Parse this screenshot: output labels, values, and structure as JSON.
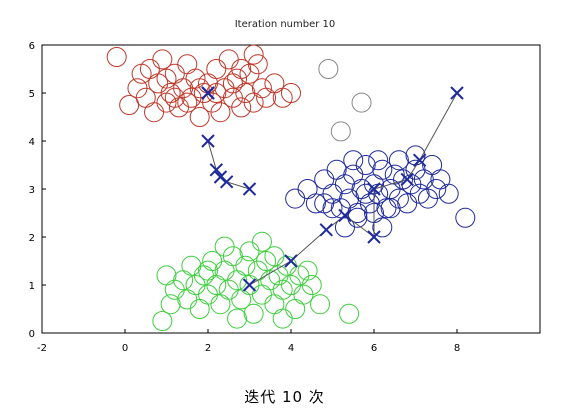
{
  "caption": "迭代 10 次",
  "chart_data": {
    "type": "scatter",
    "title": "Iteration number 10",
    "xlabel": "",
    "ylabel": "",
    "xlim": [
      -2,
      10
    ],
    "ylim": [
      0,
      6
    ],
    "xticks": [
      -2,
      0,
      2,
      4,
      6,
      8
    ],
    "yticks": [
      0,
      1,
      2,
      3,
      4,
      5,
      6
    ],
    "grid": false,
    "colors": {
      "red": "#c0392b",
      "blue": "#1f2a9c",
      "green": "#3ecf3e",
      "gray": "#888888"
    },
    "series": [
      {
        "color": "red",
        "marker": "open-circle",
        "points": [
          [
            -0.2,
            5.75
          ],
          [
            0.1,
            4.75
          ],
          [
            0.3,
            5.1
          ],
          [
            0.5,
            4.9
          ],
          [
            0.6,
            5.5
          ],
          [
            0.7,
            4.6
          ],
          [
            0.8,
            5.2
          ],
          [
            0.9,
            5.7
          ],
          [
            1.0,
            4.8
          ],
          [
            1.1,
            5.0
          ],
          [
            1.2,
            5.4
          ],
          [
            1.3,
            4.7
          ],
          [
            1.4,
            5.1
          ],
          [
            1.5,
            5.6
          ],
          [
            1.6,
            4.9
          ],
          [
            1.7,
            5.3
          ],
          [
            1.8,
            4.5
          ],
          [
            1.9,
            5.0
          ],
          [
            2.0,
            5.2
          ],
          [
            2.1,
            4.8
          ],
          [
            2.2,
            5.5
          ],
          [
            2.3,
            4.6
          ],
          [
            2.4,
            5.1
          ],
          [
            2.5,
            5.7
          ],
          [
            2.6,
            4.9
          ],
          [
            2.7,
            5.3
          ],
          [
            2.8,
            4.7
          ],
          [
            2.9,
            5.0
          ],
          [
            3.0,
            5.4
          ],
          [
            3.1,
            4.8
          ],
          [
            3.2,
            5.6
          ],
          [
            3.3,
            5.1
          ],
          [
            3.4,
            4.9
          ],
          [
            3.6,
            5.2
          ],
          [
            3.8,
            4.9
          ],
          [
            4.0,
            5.0
          ],
          [
            1.2,
            4.9
          ],
          [
            1.8,
            5.1
          ],
          [
            2.2,
            5.0
          ],
          [
            2.6,
            5.2
          ],
          [
            1.0,
            5.3
          ],
          [
            1.5,
            4.8
          ],
          [
            2.8,
            5.5
          ],
          [
            3.1,
            5.8
          ],
          [
            0.4,
            5.4
          ]
        ]
      },
      {
        "color": "blue",
        "marker": "open-circle",
        "points": [
          [
            4.1,
            2.8
          ],
          [
            4.4,
            3.0
          ],
          [
            4.6,
            2.7
          ],
          [
            4.8,
            3.2
          ],
          [
            5.0,
            2.9
          ],
          [
            5.1,
            3.4
          ],
          [
            5.2,
            2.6
          ],
          [
            5.3,
            3.1
          ],
          [
            5.4,
            2.8
          ],
          [
            5.5,
            3.3
          ],
          [
            5.6,
            2.5
          ],
          [
            5.7,
            3.0
          ],
          [
            5.8,
            3.5
          ],
          [
            5.9,
            2.7
          ],
          [
            6.0,
            3.1
          ],
          [
            6.1,
            2.9
          ],
          [
            6.2,
            3.4
          ],
          [
            6.3,
            2.6
          ],
          [
            6.4,
            3.0
          ],
          [
            6.5,
            3.3
          ],
          [
            6.6,
            2.8
          ],
          [
            6.7,
            3.2
          ],
          [
            6.8,
            2.7
          ],
          [
            6.9,
            3.1
          ],
          [
            7.0,
            3.4
          ],
          [
            7.1,
            2.9
          ],
          [
            7.2,
            3.2
          ],
          [
            7.3,
            2.8
          ],
          [
            7.4,
            3.5
          ],
          [
            7.5,
            3.0
          ],
          [
            7.6,
            3.2
          ],
          [
            7.8,
            2.9
          ],
          [
            5.6,
            2.4
          ],
          [
            6.0,
            2.5
          ],
          [
            6.4,
            2.6
          ],
          [
            5.0,
            2.6
          ],
          [
            5.3,
            2.2
          ],
          [
            4.8,
            2.7
          ],
          [
            5.5,
            3.6
          ],
          [
            6.1,
            3.6
          ],
          [
            6.6,
            3.6
          ],
          [
            7.0,
            3.7
          ],
          [
            8.2,
            2.4
          ],
          [
            6.2,
            2.2
          ],
          [
            5.8,
            2.9
          ]
        ]
      },
      {
        "color": "green",
        "marker": "open-circle",
        "points": [
          [
            0.9,
            0.25
          ],
          [
            1.0,
            1.2
          ],
          [
            1.2,
            0.9
          ],
          [
            1.4,
            1.1
          ],
          [
            1.5,
            0.7
          ],
          [
            1.6,
            1.4
          ],
          [
            1.7,
            1.0
          ],
          [
            1.8,
            0.5
          ],
          [
            1.9,
            1.2
          ],
          [
            2.0,
            0.8
          ],
          [
            2.1,
            1.5
          ],
          [
            2.2,
            1.0
          ],
          [
            2.3,
            0.6
          ],
          [
            2.4,
            1.3
          ],
          [
            2.5,
            0.9
          ],
          [
            2.6,
            1.6
          ],
          [
            2.7,
            1.1
          ],
          [
            2.8,
            0.7
          ],
          [
            2.9,
            1.4
          ],
          [
            3.0,
            1.0
          ],
          [
            3.1,
            0.4
          ],
          [
            3.2,
            1.3
          ],
          [
            3.3,
            0.8
          ],
          [
            3.4,
            1.5
          ],
          [
            3.5,
            1.1
          ],
          [
            3.6,
            0.6
          ],
          [
            3.7,
            1.2
          ],
          [
            3.8,
            0.9
          ],
          [
            3.9,
            1.4
          ],
          [
            4.0,
            1.0
          ],
          [
            4.1,
            0.5
          ],
          [
            4.2,
            1.2
          ],
          [
            4.3,
            0.8
          ],
          [
            4.5,
            1.0
          ],
          [
            4.7,
            0.6
          ],
          [
            5.4,
            0.4
          ],
          [
            3.0,
            1.7
          ],
          [
            2.4,
            1.8
          ],
          [
            3.3,
            1.9
          ],
          [
            2.0,
            1.3
          ],
          [
            3.6,
            1.6
          ],
          [
            4.4,
            1.3
          ],
          [
            1.1,
            0.6
          ],
          [
            2.7,
            0.3
          ],
          [
            3.8,
            0.3
          ]
        ]
      },
      {
        "color": "gray",
        "marker": "open-circle",
        "points": [
          [
            4.9,
            5.5
          ],
          [
            5.7,
            4.8
          ],
          [
            5.2,
            4.2
          ]
        ]
      }
    ],
    "centroid_paths": [
      {
        "color": "blue",
        "points": [
          [
            2.0,
            5.0
          ],
          [
            2.0,
            5.0
          ]
        ]
      },
      {
        "color": "blue",
        "points": [
          [
            2.0,
            4.0
          ],
          [
            2.2,
            3.4
          ],
          [
            2.3,
            3.25
          ],
          [
            2.45,
            3.15
          ],
          [
            3.0,
            3.0
          ]
        ]
      },
      {
        "color": "blue",
        "points": [
          [
            3.0,
            1.0
          ],
          [
            4.0,
            1.5
          ],
          [
            4.85,
            2.15
          ],
          [
            5.3,
            2.45
          ],
          [
            6.0,
            2.0
          ],
          [
            6.0,
            3.0
          ],
          [
            6.8,
            3.2
          ],
          [
            7.1,
            3.6
          ],
          [
            8.0,
            5.0
          ]
        ]
      }
    ]
  }
}
